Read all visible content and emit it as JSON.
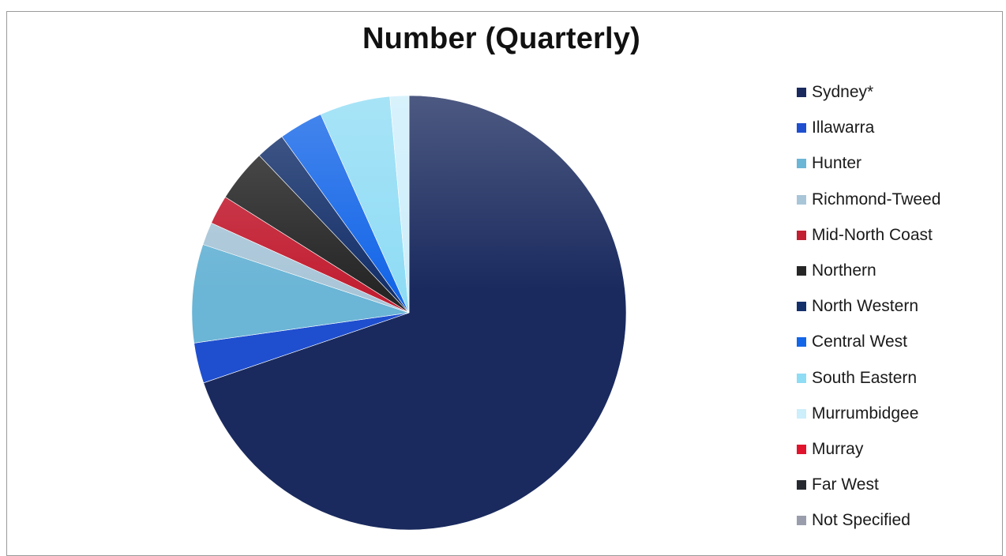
{
  "chart_data": {
    "type": "pie",
    "title": "Number (Quarterly)",
    "legend_position": "right",
    "slices": [
      {
        "label": "Sydney*",
        "value": 74.3,
        "color": "#1a2a5e"
      },
      {
        "label": "Illawarra",
        "value": 3.2,
        "color": "#1f4fcf"
      },
      {
        "label": "Hunter",
        "value": 7.8,
        "color": "#6bb5d6"
      },
      {
        "label": "Richmond-Tweed",
        "value": 1.8,
        "color": "#a9c6d8"
      },
      {
        "label": "Mid-North Coast",
        "value": 2.3,
        "color": "#c21f32"
      },
      {
        "label": "Northern",
        "value": 4.2,
        "color": "#262626"
      },
      {
        "label": "North Western",
        "value": 2.3,
        "color": "#14306a"
      },
      {
        "label": "Central West",
        "value": 3.5,
        "color": "#1466e8"
      },
      {
        "label": "South Eastern",
        "value": 5.6,
        "color": "#8fdcf5"
      },
      {
        "label": "Murrumbidgee",
        "value": 1.5,
        "color": "#cdeefb"
      },
      {
        "label": "Murray",
        "value": 0.0,
        "color": "#e0142d"
      },
      {
        "label": "Far West",
        "value": 0.0,
        "color": "#262a30"
      },
      {
        "label": "Not Specified",
        "value": 0.0,
        "color": "#9a9eac"
      }
    ]
  }
}
